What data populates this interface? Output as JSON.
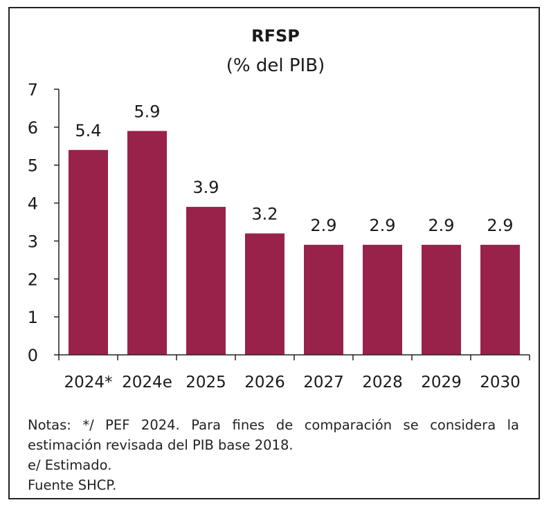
{
  "chart_data": {
    "type": "bar",
    "title": "RFSP",
    "subtitle": "(% del PIB)",
    "categories": [
      "2024*",
      "2024e",
      "2025",
      "2026",
      "2027",
      "2028",
      "2029",
      "2030"
    ],
    "values": [
      5.4,
      5.9,
      3.9,
      3.2,
      2.9,
      2.9,
      2.9,
      2.9
    ],
    "data_labels": [
      "5.4",
      "5.9",
      "3.9",
      "3.2",
      "2.9",
      "2.9",
      "2.9",
      "2.9"
    ],
    "ylim": [
      0,
      7
    ],
    "yticks": [
      "0",
      "1",
      "2",
      "3",
      "4",
      "5",
      "6",
      "7"
    ],
    "bar_color": "#99224a",
    "grid": false,
    "legend": "none"
  },
  "notes": {
    "line1": "Notas: */ PEF 2024. Para fines de comparación se considera la",
    "line2": "estimación revisada del PIB base 2018.",
    "line3": "e/ Estimado.",
    "line4": "Fuente SHCP."
  }
}
